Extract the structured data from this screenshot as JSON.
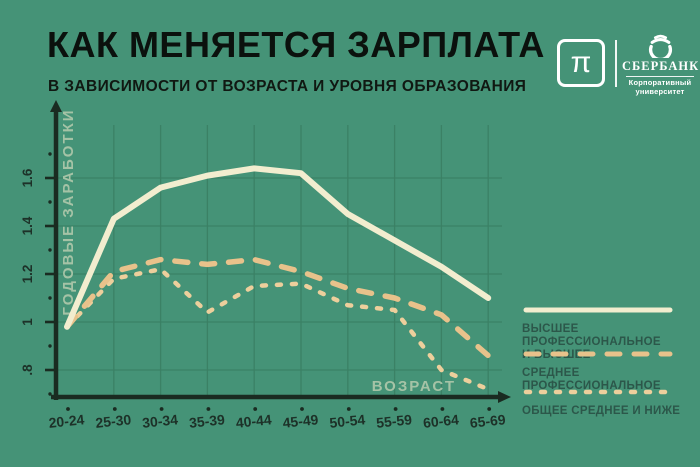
{
  "header": {
    "title": "КАК МЕНЯЕТСЯ ЗАРПЛАТА",
    "subtitle": "В ЗАВИСИМОСТИ ОТ ВОЗРАСТА И УРОВНЯ ОБРАЗОВАНИЯ"
  },
  "branding": {
    "pi_symbol": "π",
    "bank_name": "СБЕРБАНК",
    "university_line1": "Корпоративный",
    "university_line2": "университет"
  },
  "chart_data": {
    "type": "line",
    "title": "КАК МЕНЯЕТСЯ ЗАРПЛАТА В ЗАВИСИМОСТИ ОТ ВОЗРАСТА И УРОВНЯ ОБРАЗОВАНИЯ",
    "xlabel": "ВОЗРАСТ",
    "ylabel": "ГОДОВЫЕ ЗАРАБОТКИ",
    "categories": [
      "20-24",
      "25-30",
      "30-34",
      "35-39",
      "40-44",
      "45-49",
      "50-54",
      "55-59",
      "60-64",
      "65-69"
    ],
    "y_tick_labels": [
      ".8",
      "1",
      "1.2",
      "1.4",
      "1.6"
    ],
    "y_tick_values": [
      0.8,
      1.0,
      1.2,
      1.4,
      1.6
    ],
    "y_minor_tick_values": [
      0.7,
      0.9,
      1.1,
      1.3,
      1.5,
      1.7
    ],
    "ylim": [
      0.68,
      1.78
    ],
    "grid": true,
    "legend_position": "right",
    "series": [
      {
        "name": "ВЫСШЕЕ ПРОФЕССИОНАЛЬНОЕ И ВЫСШЕЕ",
        "legend_lines": [
          "ВЫСШЕЕ ПРОФЕССИОНАЛЬНОЕ",
          "И ВЫСШЕЕ"
        ],
        "style": "solid",
        "color": "#F2EDCF",
        "values": [
          0.98,
          1.43,
          1.56,
          1.61,
          1.64,
          1.62,
          1.45,
          1.34,
          1.23,
          1.1
        ]
      },
      {
        "name": "СРЕДНЕЕ ПРОФЕССИОНАЛЬНОЕ",
        "legend_lines": [
          "СРЕДНЕЕ ПРОФЕССИОНАЛЬНОЕ",
          ""
        ],
        "style": "long-dash",
        "color": "#E8C28B",
        "values": [
          0.98,
          1.21,
          1.26,
          1.24,
          1.26,
          1.21,
          1.14,
          1.1,
          1.03,
          0.86
        ]
      },
      {
        "name": "ОБЩЕЕ СРЕДНЕЕ И НИЖЕ",
        "legend_lines": [
          "ОБЩЕЕ СРЕДНЕЕ И НИЖЕ",
          ""
        ],
        "style": "short-dash",
        "color": "#EDCF9C",
        "values": [
          0.98,
          1.18,
          1.22,
          1.04,
          1.15,
          1.16,
          1.07,
          1.05,
          0.8,
          0.72
        ]
      }
    ]
  },
  "colors": {
    "background": "#459377",
    "grid": "#3B8165",
    "axis": "#1A2B21",
    "tick_text": "#1D3128",
    "axis_title_text": "#A5C3A6",
    "legend_text": "#2C574A",
    "title_text": "#0B110D"
  }
}
